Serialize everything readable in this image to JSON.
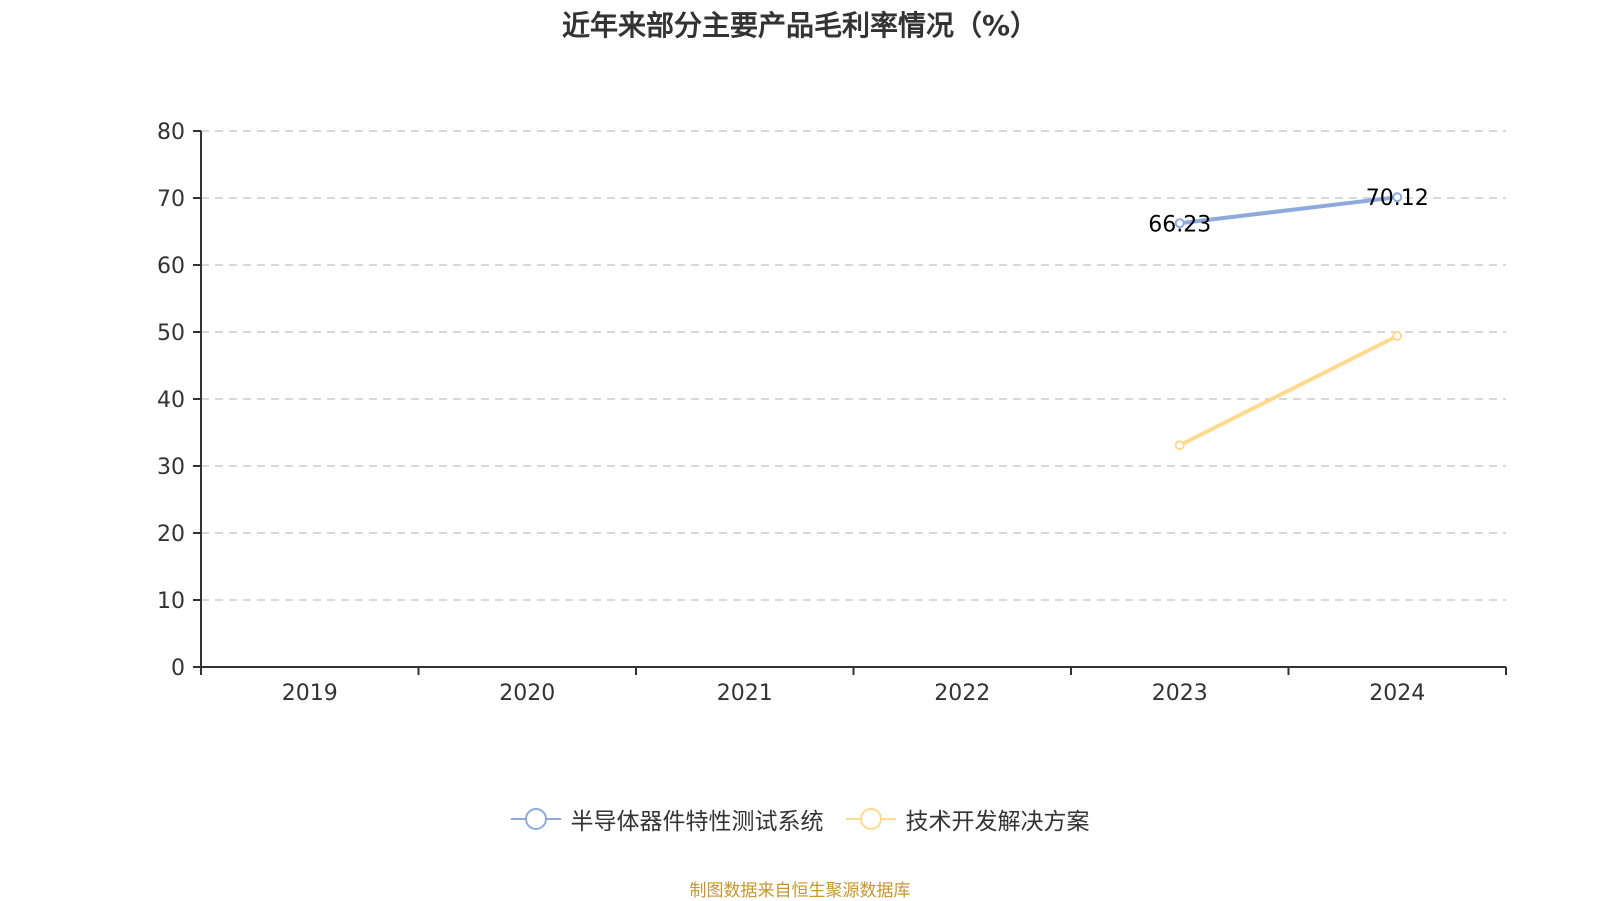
{
  "title": "近年来部分主要产品毛利率情况（%）",
  "source_note": "制图数据来自恒生聚源数据库",
  "legend": [
    {
      "label": "半导体器件特性测试系统",
      "color": "#8eaadb",
      "icon": "circle-line-marker"
    },
    {
      "label": "技术开发解决方案",
      "color": "#ffd98e",
      "icon": "circle-line-marker"
    }
  ],
  "chart_data": {
    "type": "line",
    "title": "近年来部分主要产品毛利率情况（%）",
    "xlabel": "",
    "ylabel": "",
    "categories": [
      "2019",
      "2020",
      "2021",
      "2022",
      "2023",
      "2024"
    ],
    "ylim": [
      0,
      80
    ],
    "yticks": [
      0,
      10,
      20,
      30,
      40,
      50,
      60,
      70,
      80
    ],
    "grid": "horizontal dashed",
    "legend_position": "bottom",
    "series": [
      {
        "name": "半导体器件特性测试系统",
        "color": "#8eaadb",
        "values": [
          null,
          null,
          null,
          null,
          66.23,
          70.12
        ],
        "labels": [
          "",
          "",
          "",
          "",
          "66.23",
          "70.12"
        ]
      },
      {
        "name": "技术开发解决方案",
        "color": "#ffd98e",
        "values": [
          null,
          null,
          null,
          null,
          33.1,
          49.4
        ],
        "labels": [
          "",
          "",
          "",
          "",
          "",
          ""
        ]
      }
    ]
  }
}
